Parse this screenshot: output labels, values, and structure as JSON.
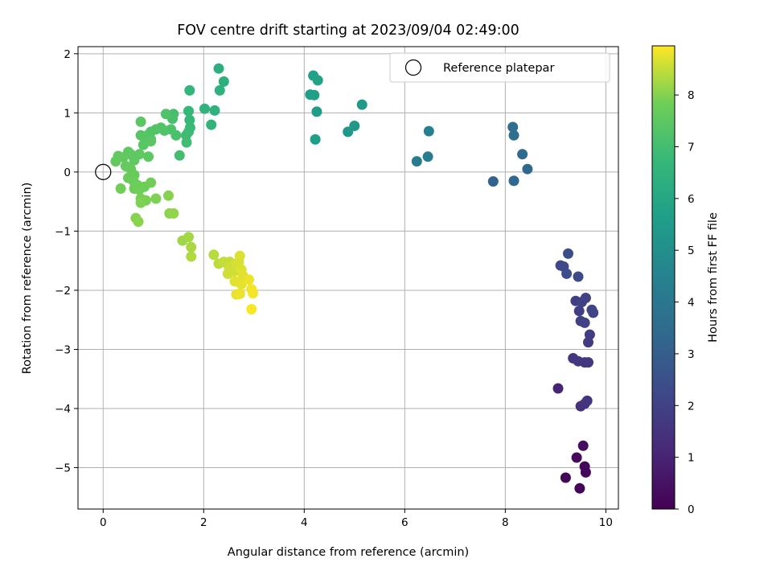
{
  "chart_data": {
    "type": "scatter",
    "title": "FOV centre drift starting at 2023/09/04 02:49:00",
    "xlabel": "Angular distance from reference (arcmin)",
    "ylabel": "Rotation from reference (arcmin)",
    "xlim": [
      -0.5,
      10.25
    ],
    "ylim": [
      -5.7,
      2.12
    ],
    "x_ticks": [
      0,
      2,
      4,
      6,
      8,
      10
    ],
    "y_ticks": [
      -5,
      -4,
      -3,
      -2,
      -1,
      0,
      1,
      2
    ],
    "grid": true,
    "legend": {
      "placement": "upper-right",
      "entries": [
        "Reference platepar"
      ]
    },
    "reference_point": {
      "x": 0,
      "y": 0,
      "label": "Reference platepar"
    },
    "colorbar": {
      "label": "Hours from first FF file",
      "range": [
        0,
        8.95
      ],
      "ticks": [
        0,
        1,
        2,
        3,
        4,
        5,
        6,
        7,
        8
      ],
      "colormap": "viridis"
    },
    "points": [
      [
        9.2,
        -5.17,
        0.1
      ],
      [
        9.48,
        -5.35,
        0.12
      ],
      [
        9.6,
        -5.08,
        0.18
      ],
      [
        9.58,
        -4.98,
        0.22
      ],
      [
        9.42,
        -4.83,
        0.28
      ],
      [
        9.55,
        -4.63,
        0.35
      ],
      [
        9.05,
        -3.66,
        1.0
      ],
      [
        9.5,
        -3.96,
        1.4
      ],
      [
        9.58,
        -3.92,
        1.5
      ],
      [
        9.63,
        -3.87,
        1.55
      ],
      [
        9.35,
        -3.15,
        1.6
      ],
      [
        9.45,
        -3.2,
        1.7
      ],
      [
        9.58,
        -3.22,
        1.6
      ],
      [
        9.65,
        -3.22,
        1.65
      ],
      [
        9.65,
        -2.88,
        1.75
      ],
      [
        9.68,
        -2.75,
        1.8
      ],
      [
        9.5,
        -2.52,
        1.9
      ],
      [
        9.58,
        -2.55,
        1.95
      ],
      [
        9.47,
        -2.35,
        1.85
      ],
      [
        9.4,
        -2.18,
        1.9
      ],
      [
        9.52,
        -2.2,
        1.95
      ],
      [
        9.6,
        -2.13,
        2.0
      ],
      [
        9.72,
        -2.33,
        2.05
      ],
      [
        9.75,
        -2.38,
        2.1
      ],
      [
        9.1,
        -1.58,
        2.2
      ],
      [
        9.16,
        -1.6,
        2.25
      ],
      [
        9.22,
        -1.72,
        2.35
      ],
      [
        9.25,
        -1.38,
        2.4
      ],
      [
        9.45,
        -1.77,
        2.3
      ],
      [
        7.76,
        -0.16,
        3.2
      ],
      [
        8.17,
        -0.15,
        3.35
      ],
      [
        8.44,
        0.05,
        3.4
      ],
      [
        8.34,
        0.3,
        3.45
      ],
      [
        8.15,
        0.76,
        3.6
      ],
      [
        8.17,
        0.62,
        3.65
      ],
      [
        6.24,
        0.18,
        4.2
      ],
      [
        6.46,
        0.26,
        4.3
      ],
      [
        6.48,
        0.69,
        4.45
      ],
      [
        4.87,
        0.68,
        5.3
      ],
      [
        5.0,
        0.78,
        5.35
      ],
      [
        5.15,
        1.14,
        5.4
      ],
      [
        4.25,
        1.02,
        5.55
      ],
      [
        4.22,
        0.55,
        5.6
      ],
      [
        4.12,
        1.31,
        5.65
      ],
      [
        4.2,
        1.3,
        5.7
      ],
      [
        4.18,
        1.63,
        5.75
      ],
      [
        4.27,
        1.55,
        5.8
      ],
      [
        2.3,
        1.75,
        6.3
      ],
      [
        2.4,
        1.53,
        6.35
      ],
      [
        2.32,
        1.38,
        6.4
      ],
      [
        2.22,
        1.04,
        6.45
      ],
      [
        2.02,
        1.07,
        6.5
      ],
      [
        2.15,
        0.8,
        6.55
      ],
      [
        1.72,
        1.38,
        6.6
      ],
      [
        1.7,
        1.03,
        6.7
      ],
      [
        1.72,
        0.88,
        6.75
      ],
      [
        1.73,
        0.75,
        6.8
      ],
      [
        1.7,
        0.68,
        6.85
      ],
      [
        1.65,
        0.62,
        6.9
      ],
      [
        1.66,
        0.5,
        6.95
      ],
      [
        1.52,
        0.28,
        7.0
      ],
      [
        1.4,
        0.98,
        7.05
      ],
      [
        1.38,
        0.9,
        7.1
      ],
      [
        1.45,
        0.62,
        7.15
      ],
      [
        1.35,
        0.72,
        7.2
      ],
      [
        1.25,
        0.98,
        7.25
      ],
      [
        1.22,
        0.7,
        7.25
      ],
      [
        1.15,
        0.75,
        7.3
      ],
      [
        1.05,
        0.72,
        7.3
      ],
      [
        0.95,
        0.68,
        7.3
      ],
      [
        0.95,
        0.55,
        7.32
      ],
      [
        0.88,
        0.62,
        7.35
      ],
      [
        0.8,
        0.6,
        7.38
      ],
      [
        0.75,
        0.62,
        7.4
      ],
      [
        0.8,
        0.46,
        7.42
      ],
      [
        0.95,
        0.52,
        7.45
      ],
      [
        0.75,
        0.85,
        7.45
      ],
      [
        0.9,
        0.26,
        7.5
      ],
      [
        0.72,
        0.3,
        7.52
      ],
      [
        0.62,
        0.2,
        7.55
      ],
      [
        0.55,
        0.3,
        7.55
      ],
      [
        0.5,
        0.34,
        7.55
      ],
      [
        0.4,
        0.25,
        7.58
      ],
      [
        0.3,
        0.27,
        7.6
      ],
      [
        0.25,
        0.18,
        7.6
      ],
      [
        0.45,
        0.1,
        7.65
      ],
      [
        0.55,
        0.05,
        7.68
      ],
      [
        0.62,
        -0.05,
        7.7
      ],
      [
        0.5,
        -0.1,
        7.72
      ],
      [
        0.6,
        -0.15,
        7.75
      ],
      [
        0.68,
        -0.22,
        7.78
      ],
      [
        0.62,
        -0.28,
        7.8
      ],
      [
        0.82,
        -0.25,
        7.8
      ],
      [
        0.72,
        -0.3,
        7.82
      ],
      [
        0.35,
        -0.28,
        7.85
      ],
      [
        0.95,
        -0.18,
        7.85
      ],
      [
        0.75,
        -0.45,
        7.9
      ],
      [
        0.85,
        -0.48,
        7.92
      ],
      [
        0.75,
        -0.52,
        7.95
      ],
      [
        1.05,
        -0.45,
        7.95
      ],
      [
        1.3,
        -0.4,
        8.0
      ],
      [
        0.65,
        -0.78,
        8.02
      ],
      [
        0.7,
        -0.84,
        8.05
      ],
      [
        1.32,
        -0.7,
        8.05
      ],
      [
        1.4,
        -0.7,
        8.1
      ],
      [
        1.58,
        -1.16,
        8.2
      ],
      [
        1.7,
        -1.1,
        8.25
      ],
      [
        1.75,
        -1.27,
        8.3
      ],
      [
        1.75,
        -1.43,
        8.35
      ],
      [
        2.2,
        -1.4,
        8.4
      ],
      [
        2.3,
        -1.55,
        8.45
      ],
      [
        2.4,
        -1.52,
        8.5
      ],
      [
        2.52,
        -1.52,
        8.52
      ],
      [
        2.5,
        -1.6,
        8.55
      ],
      [
        2.48,
        -1.72,
        8.58
      ],
      [
        2.6,
        -1.68,
        8.6
      ],
      [
        2.65,
        -1.55,
        8.62
      ],
      [
        2.7,
        -1.52,
        8.65
      ],
      [
        2.72,
        -1.42,
        8.68
      ],
      [
        2.75,
        -1.65,
        8.7
      ],
      [
        2.78,
        -1.75,
        8.72
      ],
      [
        2.62,
        -1.85,
        8.74
      ],
      [
        2.75,
        -1.9,
        8.76
      ],
      [
        2.65,
        -2.07,
        8.78
      ],
      [
        2.72,
        -2.06,
        8.8
      ],
      [
        2.9,
        -1.82,
        8.82
      ],
      [
        2.95,
        -1.98,
        8.85
      ],
      [
        2.98,
        -2.05,
        8.88
      ],
      [
        2.95,
        -2.32,
        8.92
      ]
    ]
  }
}
